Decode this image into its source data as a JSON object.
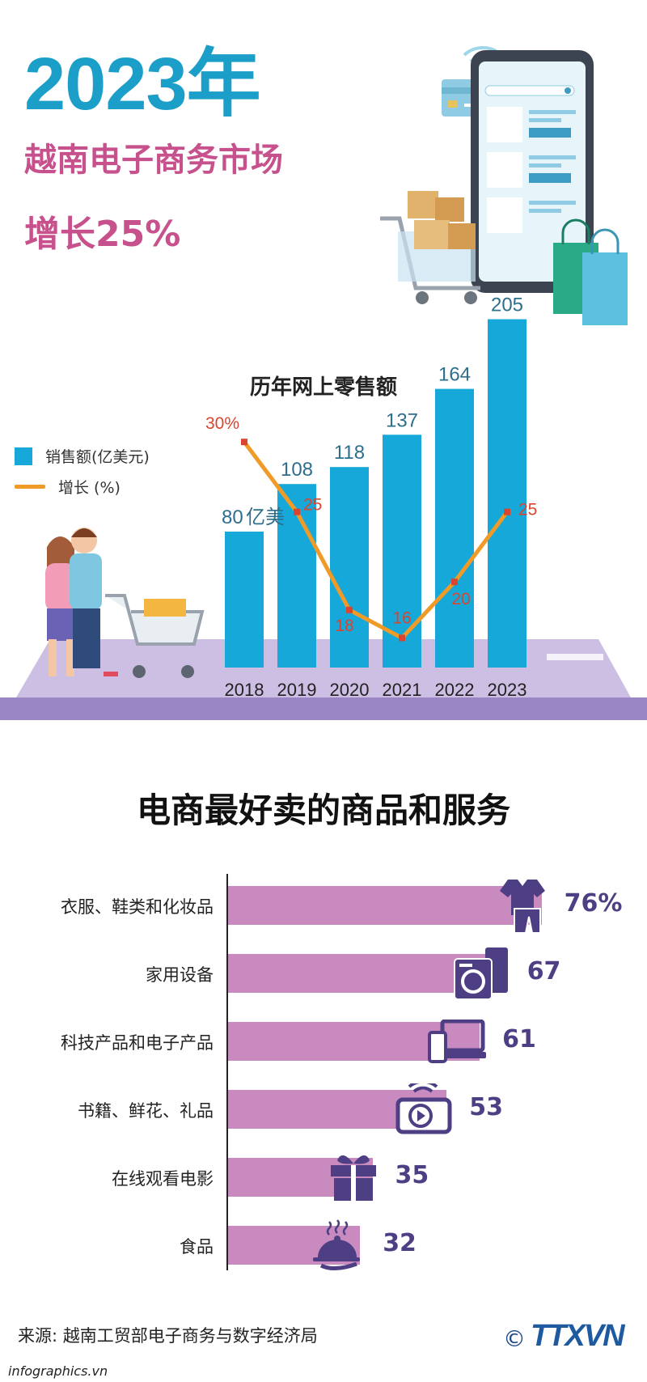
{
  "hero": {
    "year": "2023年",
    "subtitle": "越南电子商务市场",
    "growth": "增长25%"
  },
  "chart1": {
    "title": "历年网上零售额",
    "legend_sales": "销售额(亿美元)",
    "legend_growth": "增长 (%)",
    "unit_suffix": "亿美"
  },
  "section2": {
    "title": "电商最好卖的商品和服务"
  },
  "footer": {
    "source": "来源: 越南工贸部电子商务与数字经济局",
    "site": "infographics.vn",
    "copyright": "©",
    "logo": "TTXVN"
  },
  "colors": {
    "accent": "#1b9fc9",
    "pink": "#c7518c",
    "bar": "#16a8d8",
    "line": "#f09a28",
    "hbar": "#c98ac0",
    "value": "#4e3f85"
  },
  "chart_data": [
    {
      "type": "bar",
      "title": "历年网上零售额",
      "categories": [
        "2018",
        "2019",
        "2020",
        "2021",
        "2022",
        "2023"
      ],
      "series": [
        {
          "name": "销售额(亿美元)",
          "type": "bar",
          "values": [
            80,
            108,
            118,
            137,
            164,
            205
          ]
        },
        {
          "name": "增长 (%)",
          "type": "line",
          "values": [
            30,
            25,
            18,
            16,
            20,
            25
          ]
        }
      ]
    },
    {
      "type": "bar",
      "orientation": "horizontal",
      "title": "电商最好卖的商品和服务",
      "categories": [
        "衣服、鞋类和化妆品",
        "家用设备",
        "科技产品和电子产品",
        "书籍、鲜花、礼品",
        "在线观看电影",
        "食品"
      ],
      "values": [
        76,
        67,
        61,
        53,
        35,
        32
      ],
      "icons": [
        "clothes-icon",
        "appliance-icon",
        "devices-icon",
        "video-icon",
        "gift-icon",
        "food-cloche-icon"
      ]
    }
  ]
}
